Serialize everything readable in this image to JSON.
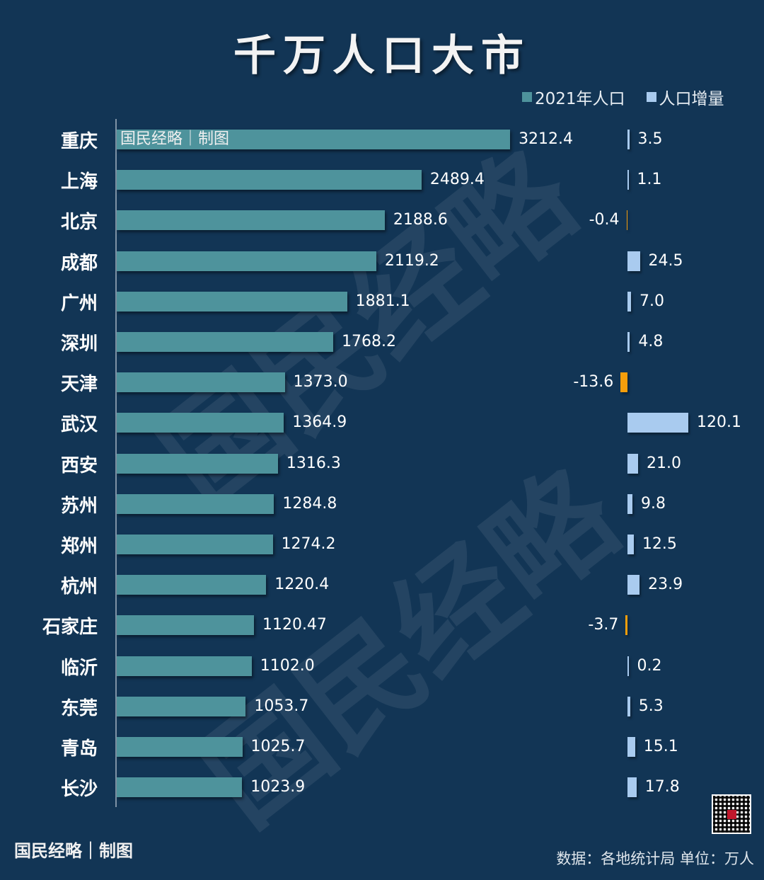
{
  "title": "千万人口大市",
  "legend": [
    {
      "label": "2021年人口",
      "color": "#4e939c"
    },
    {
      "label": "人口增量",
      "color": "#a9cbef"
    }
  ],
  "watermark_bar": "国民经略｜制图",
  "watermark_big": [
    "国民经略",
    "国民经略"
  ],
  "footer": {
    "credit": "国民经略｜制图",
    "source": "数据：各地统计局 单位：万人"
  },
  "colors": {
    "background": "#123555",
    "population_bar": "#4e939c",
    "increase_positive": "#a9cbef",
    "increase_negative": "#f59e0b"
  },
  "rows": [
    {
      "city": "重庆",
      "pop": "3212.4",
      "inc": "3.5"
    },
    {
      "city": "上海",
      "pop": "2489.4",
      "inc": "1.1"
    },
    {
      "city": "北京",
      "pop": "2188.6",
      "inc": "-0.4"
    },
    {
      "city": "成都",
      "pop": "2119.2",
      "inc": "24.5"
    },
    {
      "city": "广州",
      "pop": "1881.1",
      "inc": "7.0"
    },
    {
      "city": "深圳",
      "pop": "1768.2",
      "inc": "4.8"
    },
    {
      "city": "天津",
      "pop": "1373.0",
      "inc": "-13.6"
    },
    {
      "city": "武汉",
      "pop": "1364.9",
      "inc": "120.1"
    },
    {
      "city": "西安",
      "pop": "1316.3",
      "inc": "21.0"
    },
    {
      "city": "苏州",
      "pop": "1284.8",
      "inc": "9.8"
    },
    {
      "city": "郑州",
      "pop": "1274.2",
      "inc": "12.5"
    },
    {
      "city": "杭州",
      "pop": "1220.4",
      "inc": "23.9"
    },
    {
      "city": "石家庄",
      "pop": "1120.47",
      "inc": "-3.7"
    },
    {
      "city": "临沂",
      "pop": "1102.0",
      "inc": "0.2"
    },
    {
      "city": "东莞",
      "pop": "1053.7",
      "inc": "5.3"
    },
    {
      "city": "青岛",
      "pop": "1025.7",
      "inc": "15.1"
    },
    {
      "city": "长沙",
      "pop": "1023.9",
      "inc": "17.8"
    }
  ],
  "chart_data": {
    "type": "bar",
    "orientation": "horizontal",
    "title": "千万人口大市",
    "categories": [
      "重庆",
      "上海",
      "北京",
      "成都",
      "广州",
      "深圳",
      "天津",
      "武汉",
      "西安",
      "苏州",
      "郑州",
      "杭州",
      "石家庄",
      "临沂",
      "东莞",
      "青岛",
      "长沙"
    ],
    "series": [
      {
        "name": "2021年人口",
        "values": [
          3212.4,
          2489.4,
          2188.6,
          2119.2,
          1881.1,
          1768.2,
          1373.0,
          1364.9,
          1316.3,
          1284.8,
          1274.2,
          1220.4,
          1120.47,
          1102.0,
          1053.7,
          1025.7,
          1023.9
        ]
      },
      {
        "name": "人口增量",
        "values": [
          3.5,
          1.1,
          -0.4,
          24.5,
          7.0,
          4.8,
          -13.6,
          120.1,
          21.0,
          9.8,
          12.5,
          23.9,
          -3.7,
          0.2,
          5.3,
          15.1,
          17.8
        ]
      }
    ],
    "unit": "万人",
    "source": "各地统计局",
    "legend_position": "top-right",
    "grid": false
  }
}
